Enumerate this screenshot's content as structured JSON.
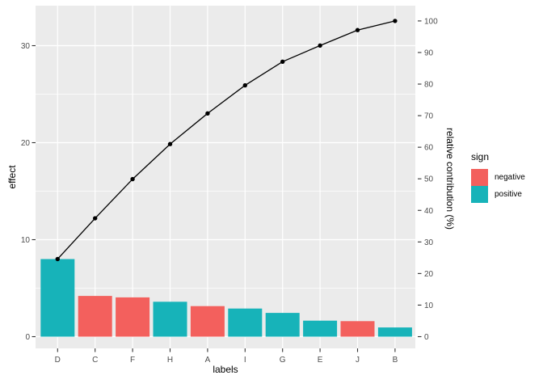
{
  "chart_data": {
    "type": "bar",
    "variant": "pareto-with-cumulative-line",
    "title": "",
    "xlabel": "labels",
    "ylabel": "effect",
    "ylabel_right": "relative contribution (%)",
    "categories": [
      "D",
      "C",
      "F",
      "H",
      "A",
      "I",
      "G",
      "E",
      "J",
      "B"
    ],
    "series": [
      {
        "name": "effect",
        "type": "bar",
        "axis": "left",
        "values": [
          8.0,
          4.2,
          4.05,
          3.6,
          3.15,
          2.9,
          2.45,
          1.65,
          1.6,
          0.95
        ],
        "sign": [
          "positive",
          "negative",
          "negative",
          "positive",
          "negative",
          "positive",
          "positive",
          "positive",
          "negative",
          "positive"
        ]
      },
      {
        "name": "cumulative relative contribution",
        "type": "line",
        "axis": "right",
        "values_pct": [
          24.6,
          37.5,
          49.9,
          61.0,
          70.7,
          79.6,
          87.1,
          92.2,
          97.1,
          100.0
        ]
      }
    ],
    "axis_left": {
      "ticks": [
        0,
        10,
        20,
        30
      ],
      "minor_ticks": [
        5,
        15,
        25
      ],
      "range": [
        -1.2,
        34.1
      ]
    },
    "axis_right": {
      "ticks": [
        0,
        10,
        20,
        30,
        40,
        50,
        60,
        70,
        80,
        90,
        100
      ],
      "range_pct": [
        -3.7,
        104.8
      ]
    },
    "legend": {
      "title": "sign",
      "position": "right",
      "entries": [
        {
          "label": "negative",
          "color": "#F3605D"
        },
        {
          "label": "positive",
          "color": "#17B3B9"
        }
      ]
    },
    "grid": true,
    "style": {
      "panel_background": "#EBEBEB",
      "gridline": "#FFFFFF",
      "line_color": "#000000",
      "tick_label_color": "#4D4D4D",
      "axis_title_color": "#000000",
      "tick_mark_color": "#333333"
    }
  }
}
